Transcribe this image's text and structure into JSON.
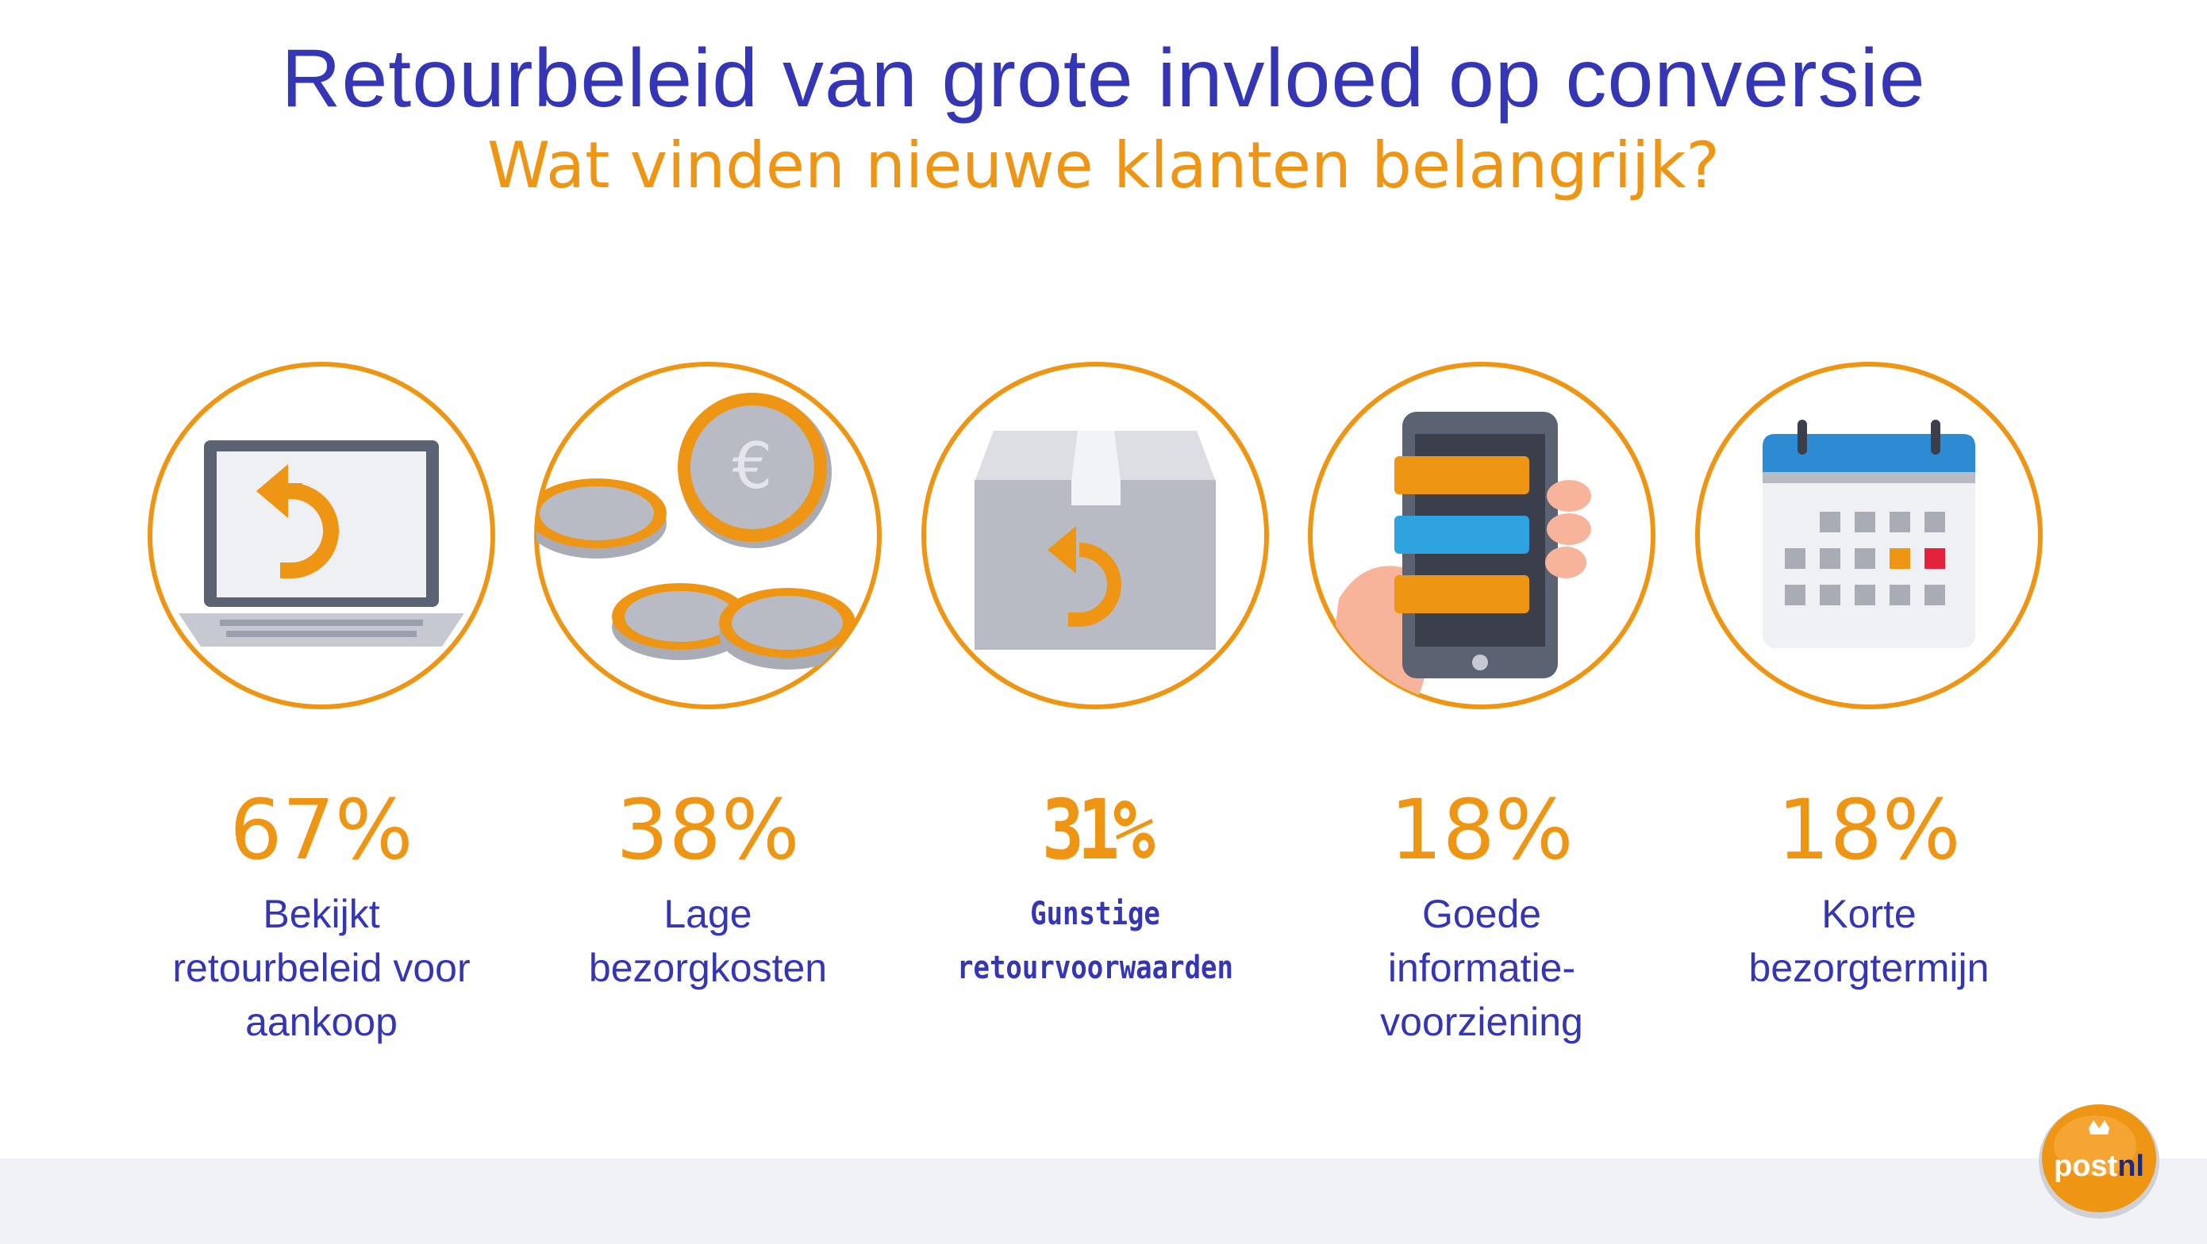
{
  "header": {
    "title": "Retourbeleid van grote invloed op conversie",
    "subtitle": "Wat vinden nieuwe klanten belangrijk?"
  },
  "items": [
    {
      "value": "67%",
      "label_lines": [
        "Bekijkt",
        "retourbeleid voor",
        "aankoop"
      ],
      "icon": "laptop-return-icon"
    },
    {
      "value": "38%",
      "label_lines": [
        "Lage",
        "bezorgkosten"
      ],
      "icon": "euro-coins-icon"
    },
    {
      "value": "31%",
      "label_lines": [
        "Gunstige",
        "retourvoorwaarden"
      ],
      "icon": "box-return-icon"
    },
    {
      "value": "18%",
      "label_lines": [
        "Goede",
        "informatie-",
        "voorziening"
      ],
      "icon": "smartphone-messages-icon"
    },
    {
      "value": "18%",
      "label_lines": [
        "Korte",
        "bezorgtermijn"
      ],
      "icon": "calendar-icon"
    }
  ],
  "logo": {
    "text_post": "post",
    "text_nl": "nl"
  },
  "colors": {
    "title": "#3436b6",
    "accent": "#ef9514",
    "footer": "#f1f2f6"
  }
}
